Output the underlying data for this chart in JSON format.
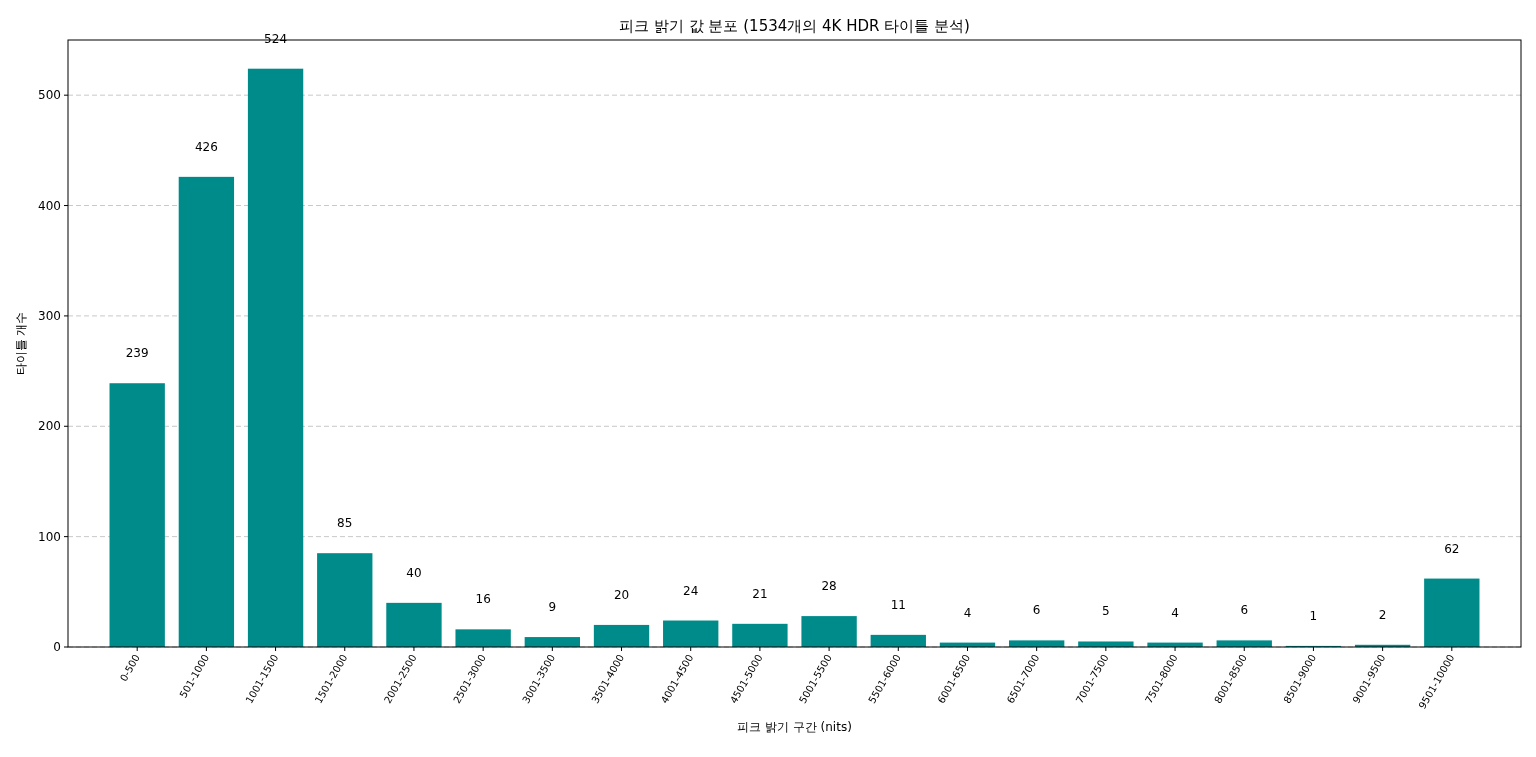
{
  "chart_data": {
    "type": "bar",
    "title": "피크 밝기 값 분포 (1534개의 4K HDR 타이틀 분석)",
    "xlabel": "피크 밝기 구간 (nits)",
    "ylabel": "타이틀 개수",
    "categories": [
      "0-500",
      "501-1000",
      "1001-1500",
      "1501-2000",
      "2001-2500",
      "2501-3000",
      "3001-3500",
      "3501-4000",
      "4001-4500",
      "4501-5000",
      "5001-5500",
      "5501-6000",
      "6001-6500",
      "6501-7000",
      "7001-7500",
      "7501-8000",
      "8001-8500",
      "8501-9000",
      "9001-9500",
      "9501-10000"
    ],
    "values": [
      239,
      426,
      524,
      85,
      40,
      16,
      9,
      20,
      24,
      21,
      28,
      11,
      4,
      6,
      5,
      4,
      6,
      1,
      2,
      62
    ],
    "color": "#008b8b",
    "ylim": [
      0,
      550
    ],
    "yticks": [
      0,
      100,
      200,
      300,
      400,
      500
    ],
    "grid": "y",
    "data_labels": true
  }
}
